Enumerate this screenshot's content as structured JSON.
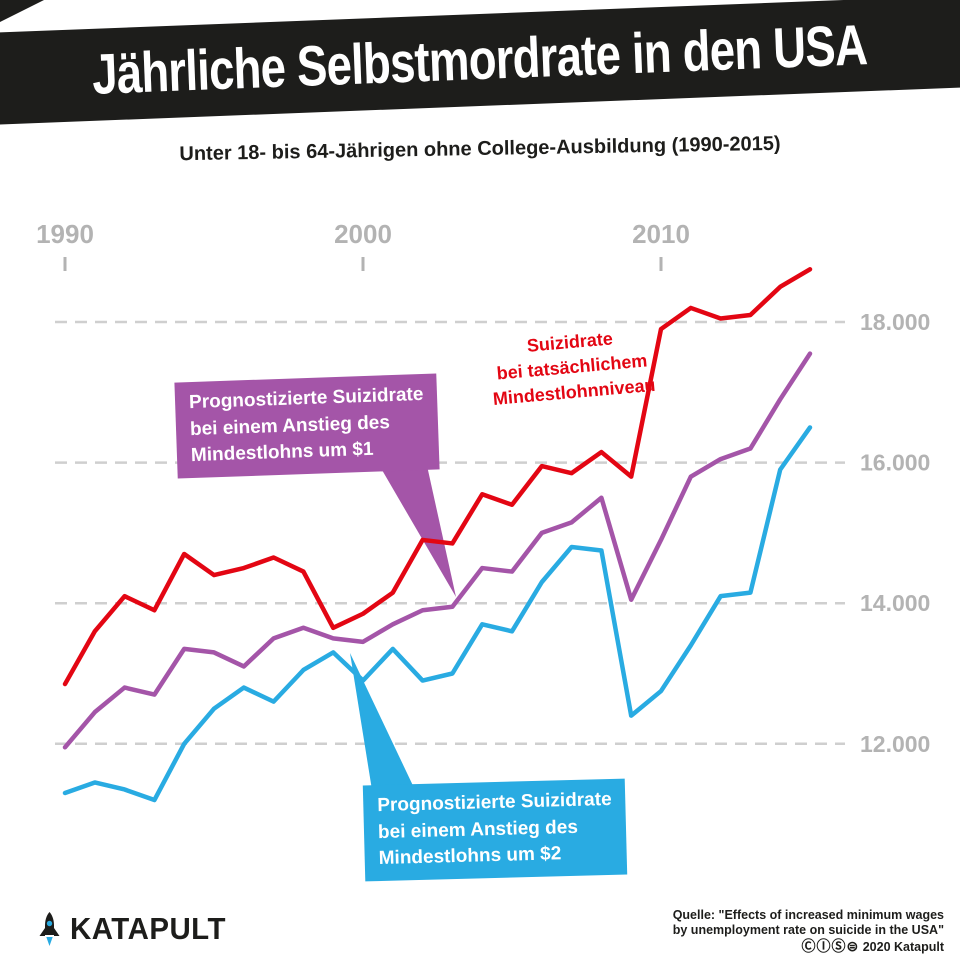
{
  "chart_data": {
    "type": "line",
    "title": "Jährliche Selbstmordrate in den USA",
    "subtitle": "Unter 18- bis 64-Jährigen ohne College-Ausbildung (1990-2015)",
    "x": [
      1990,
      1991,
      1992,
      1993,
      1994,
      1995,
      1996,
      1997,
      1998,
      1999,
      2000,
      2001,
      2002,
      2003,
      2004,
      2005,
      2006,
      2007,
      2008,
      2009,
      2010,
      2011,
      2012,
      2013,
      2014,
      2015
    ],
    "x_ticks": [
      {
        "year": 1990,
        "label": "1990"
      },
      {
        "year": 2000,
        "label": "2000"
      },
      {
        "year": 2010,
        "label": "2010"
      }
    ],
    "y_gridlines": [
      {
        "value": 18000,
        "label": "18.000"
      },
      {
        "value": 16000,
        "label": "16.000"
      },
      {
        "value": 14000,
        "label": "14.000"
      },
      {
        "value": 12000,
        "label": "12.000"
      }
    ],
    "ylim": [
      11000,
      19000
    ],
    "grid": "dashed-horizontal",
    "series": [
      {
        "name": "Suizidrate bei tatsächlichem Mindestlohnniveau",
        "color": "#e30613",
        "values": [
          12850,
          13600,
          14100,
          13900,
          14700,
          14400,
          14500,
          14650,
          14450,
          13650,
          13850,
          14150,
          14900,
          14850,
          15550,
          15400,
          15950,
          15850,
          16150,
          15800,
          17900,
          18200,
          18050,
          18100,
          18500,
          18750
        ]
      },
      {
        "name": "Prognostizierte Suizidrate bei einem Anstieg des Mindestlohns um $1",
        "color": "#a455a8",
        "values": [
          11950,
          12450,
          12800,
          12700,
          13350,
          13300,
          13100,
          13500,
          13650,
          13500,
          13450,
          13700,
          13900,
          13950,
          14500,
          14450,
          15000,
          15150,
          15500,
          14050,
          14900,
          15800,
          16050,
          16200,
          16900,
          17550
        ]
      },
      {
        "name": "Prognostizierte Suizidrate bei einem Anstieg des Mindestlohns um $2",
        "color": "#29abe2",
        "values": [
          11300,
          11450,
          11350,
          11200,
          12000,
          12500,
          12800,
          12600,
          13050,
          13300,
          12900,
          13350,
          12900,
          13000,
          13700,
          13600,
          14300,
          14800,
          14750,
          12400,
          12750,
          13400,
          14100,
          14150,
          15900,
          16500
        ]
      }
    ],
    "annotations": {
      "red": {
        "lines": [
          "Suizidrate",
          "bei tatsächlichem",
          "Mindestlohnniveau"
        ],
        "color": "#e30613"
      },
      "purple": {
        "lines": [
          "Prognostizierte Suizidrate",
          "bei einem Anstieg des",
          "Mindestlohns um $1"
        ],
        "bg": "#a455a8"
      },
      "blue": {
        "lines": [
          "Prognostizierte Suizidrate",
          "bei einem Anstieg des",
          "Mindestlohns um $2"
        ],
        "bg": "#29abe2"
      }
    },
    "axis_color": "#b3b3b3",
    "gridline_color": "#cfcfcf"
  },
  "footer": {
    "logo_text": "KATAPULT",
    "source_line1": "Quelle: \"Effects of increased minimum wages",
    "source_line2": "by unemployment rate on suicide in the USA\"",
    "license_icons": "ⒸⒾⓈ⊜",
    "license_text": "2020 Katapult"
  }
}
